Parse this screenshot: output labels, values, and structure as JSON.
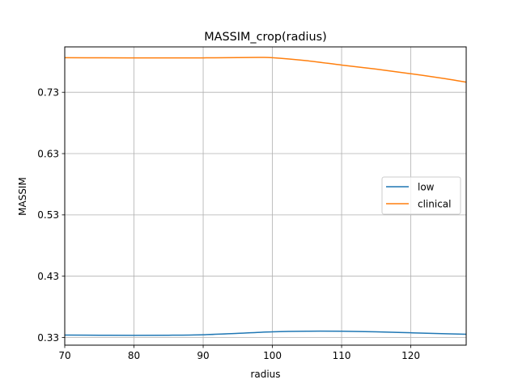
{
  "chart_data": {
    "type": "line",
    "title": "MASSIM_crop(radius)",
    "xlabel": "radius",
    "ylabel": "MASSIM",
    "xlim": [
      70,
      128
    ],
    "ylim": [
      0.3175,
      0.8041
    ],
    "xticks": [
      70,
      80,
      90,
      100,
      110,
      120
    ],
    "yticks": [
      0.33,
      0.43,
      0.53,
      0.63,
      0.73
    ],
    "ytick_labels": [
      "0.33",
      "0.43",
      "0.53",
      "0.63",
      "0.73"
    ],
    "grid": true,
    "legend_position": "right",
    "series": [
      {
        "name": "low",
        "color": "#1f77b4",
        "x": [
          70,
          75,
          80,
          85,
          90,
          95,
          100,
          105,
          110,
          115,
          120,
          125,
          128
        ],
        "y": [
          0.334,
          0.3337,
          0.3335,
          0.3337,
          0.3345,
          0.3368,
          0.3393,
          0.3403,
          0.3402,
          0.3392,
          0.3377,
          0.3361,
          0.3353
        ]
      },
      {
        "name": "clinical",
        "color": "#ff7f0e",
        "x": [
          70,
          75,
          80,
          85,
          90,
          95,
          98,
          100,
          105,
          110,
          115,
          120,
          125,
          128
        ],
        "y": [
          0.7865,
          0.7863,
          0.7862,
          0.7861,
          0.7862,
          0.7866,
          0.7869,
          0.7865,
          0.7815,
          0.7745,
          0.7678,
          0.7603,
          0.7522,
          0.7465
        ]
      }
    ]
  }
}
